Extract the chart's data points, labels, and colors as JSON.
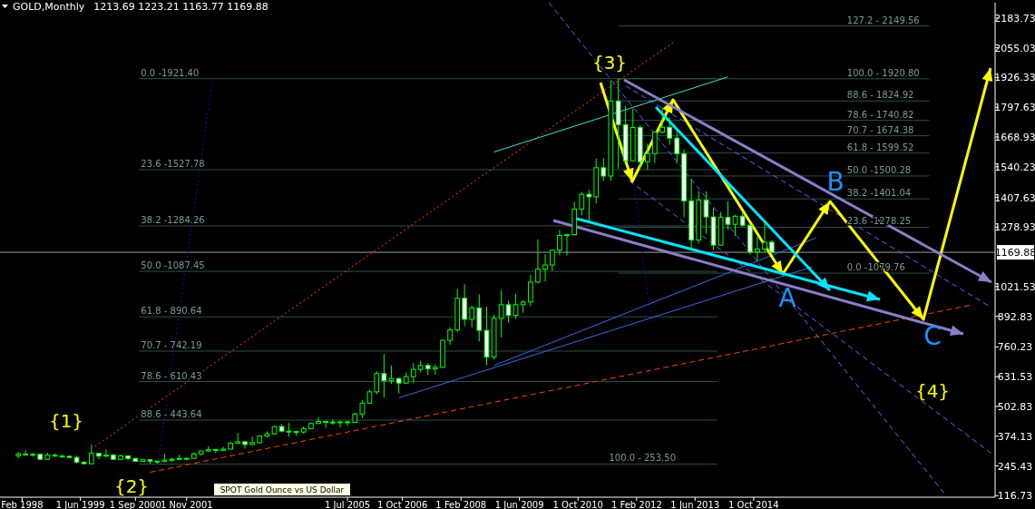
{
  "chart_data": {
    "type": "candlestick",
    "title": "GOLD,Monthly",
    "subtitle": "1213.69 1223.21 1163.77 1169.88",
    "annotations": [
      "{1}",
      "{2}",
      "{3}",
      "{4}",
      "A",
      "B",
      "C",
      "SPOT Gold Ounce vs US Dollar",
      {
        "text": "0.0 -1921.40",
        "x": "2000-10",
        "y": 1921.4
      },
      {
        "text": "23.6 -1527.78",
        "x": "2000-10",
        "y": 1527.78
      },
      {
        "text": "38.2 -1284.26",
        "x": "2000-10",
        "y": 1284.26
      },
      {
        "text": "50.0 -1087.45",
        "x": "2000-10",
        "y": 1087.45
      },
      {
        "text": "61.8 - 890.64",
        "x": "2000-10",
        "y": 890.64
      },
      {
        "text": "70.7 - 742.19",
        "x": "2000-10",
        "y": 742.19
      },
      {
        "text": "78.6 - 610.43",
        "x": "2000-10",
        "y": 610.43
      },
      {
        "text": "88.6 - 443.64",
        "x": "2000-10",
        "y": 443.64
      },
      {
        "text": "100.0 - 253.50",
        "x": "2011-06",
        "y": 253.5
      },
      {
        "text": "127.2 - 2149.56",
        "x": "2016-11",
        "y": 2149.56
      },
      {
        "text": "100.0 - 1920.80",
        "x": "2016-11",
        "y": 1920.8
      },
      {
        "text": "88.6 - 1824.92",
        "x": "2016-11",
        "y": 1824.92
      },
      {
        "text": "78.6 - 1740.82",
        "x": "2016-11",
        "y": 1740.82
      },
      {
        "text": "70.7 - 1674.38",
        "x": "2016-11",
        "y": 1674.38
      },
      {
        "text": "61.8 - 1599.52",
        "x": "2016-11",
        "y": 1599.52
      },
      {
        "text": "50.0 -1500.28",
        "x": "2016-11",
        "y": 1500.28
      },
      {
        "text": "38.2 -1401.04",
        "x": "2016-11",
        "y": 1401.04
      },
      {
        "text": "23.6 -1278.25",
        "x": "2016-11",
        "y": 1278.25
      },
      {
        "text": "0.0 -1079.76",
        "x": "2016-11",
        "y": 1079.76
      }
    ],
    "xlim": [
      "1997-08",
      "2020-04"
    ],
    "xticks": [
      {
        "value": "1998-02",
        "label": "Feb 1998"
      },
      {
        "value": "1999-06",
        "label": "1 Jun 1999"
      },
      {
        "value": "2000-09",
        "label": "1 Sep 2000"
      },
      {
        "value": "2001-11",
        "label": "1 Nov 2001"
      },
      {
        "value": "2005-07",
        "label": "1 Jul 2005"
      },
      {
        "value": "2006-10",
        "label": "1 Oct 2006"
      },
      {
        "value": "2008-02",
        "label": "1 Feb 2008"
      },
      {
        "value": "2009-06",
        "label": "1 Jun 2009"
      },
      {
        "value": "2010-10",
        "label": "1 Oct 2010"
      },
      {
        "value": "2012-02",
        "label": "1 Feb 2012"
      },
      {
        "value": "2013-06",
        "label": "1 Jun 2013"
      },
      {
        "value": "2014-10",
        "label": "1 Oct 2014"
      }
    ],
    "ylim": [
      110,
      2250
    ],
    "yticks": [
      116.73,
      245.43,
      374.13,
      502.83,
      631.53,
      760.23,
      892.83,
      1021.53,
      1278.93,
      1407.63,
      1540.23,
      1668.93,
      1797.63,
      1926.33,
      2055.03,
      2183.73
    ],
    "ref_lines": [
      {
        "axis": "y",
        "value": 1169.88,
        "label": "1169.88",
        "color": "#a0a0a0"
      }
    ],
    "series": [
      {
        "type": "candlestick",
        "color": "#00ff00",
        "x": [
          "1998-01",
          "1998-03",
          "1998-05",
          "1998-07",
          "1998-09",
          "1998-11",
          "1999-01",
          "1999-03",
          "1999-05",
          "1999-07",
          "1999-09",
          "1999-11",
          "2000-01",
          "2000-03",
          "2000-05",
          "2000-07",
          "2000-09",
          "2000-11",
          "2001-01",
          "2001-03",
          "2001-05",
          "2001-07",
          "2001-09",
          "2001-11",
          "2002-01",
          "2002-03",
          "2002-05",
          "2002-07",
          "2002-09",
          "2002-11",
          "2003-01",
          "2003-03",
          "2003-05",
          "2003-07",
          "2003-09",
          "2003-11",
          "2004-01",
          "2004-03",
          "2004-05",
          "2004-07",
          "2004-09",
          "2004-11",
          "2005-01",
          "2005-03",
          "2005-05",
          "2005-07",
          "2005-09",
          "2005-11",
          "2006-01",
          "2006-03",
          "2006-05",
          "2006-07",
          "2006-09",
          "2006-11",
          "2007-01",
          "2007-03",
          "2007-05",
          "2007-07",
          "2007-09",
          "2007-11",
          "2008-01",
          "2008-03",
          "2008-05",
          "2008-07",
          "2008-09",
          "2008-11",
          "2009-01",
          "2009-03",
          "2009-05",
          "2009-07",
          "2009-09",
          "2009-11",
          "2010-01",
          "2010-03",
          "2010-05",
          "2010-07",
          "2010-09",
          "2010-11",
          "2011-01",
          "2011-03",
          "2011-05",
          "2011-07",
          "2011-09",
          "2011-11",
          "2012-01",
          "2012-03",
          "2012-05",
          "2012-07",
          "2012-09",
          "2012-11",
          "2013-01",
          "2013-03",
          "2013-05",
          "2013-07",
          "2013-09",
          "2013-11",
          "2014-01",
          "2014-03",
          "2014-05",
          "2014-07",
          "2014-09",
          "2014-11",
          "2015-01",
          "2015-03"
        ],
        "ohlc": [
          [
            289,
            305,
            279,
            297
          ],
          [
            297,
            314,
            292,
            296
          ],
          [
            296,
            302,
            285,
            296
          ],
          [
            296,
            297,
            272,
            274
          ],
          [
            274,
            302,
            271,
            292
          ],
          [
            292,
            300,
            285,
            288
          ],
          [
            288,
            294,
            280,
            287
          ],
          [
            287,
            290,
            278,
            282
          ],
          [
            282,
            290,
            256,
            262
          ],
          [
            262,
            265,
            252,
            255
          ],
          [
            255,
            338,
            253,
            300
          ],
          [
            300,
            302,
            274,
            288
          ],
          [
            288,
            316,
            281,
            292
          ],
          [
            292,
            299,
            270,
            274
          ],
          [
            274,
            294,
            270,
            289
          ],
          [
            289,
            290,
            270,
            278
          ],
          [
            278,
            280,
            263,
            265
          ],
          [
            265,
            275,
            262,
            272
          ],
          [
            272,
            275,
            255,
            266
          ],
          [
            266,
            268,
            255,
            264
          ],
          [
            264,
            298,
            262,
            270
          ],
          [
            270,
            280,
            264,
            274
          ],
          [
            274,
            294,
            270,
            278
          ],
          [
            278,
            282,
            270,
            278
          ],
          [
            278,
            306,
            277,
            297
          ],
          [
            297,
            312,
            290,
            310
          ],
          [
            310,
            329,
            305,
            316
          ],
          [
            316,
            318,
            300,
            313
          ],
          [
            313,
            328,
            310,
            318
          ],
          [
            318,
            350,
            316,
            343
          ],
          [
            343,
            388,
            342,
            350
          ],
          [
            350,
            352,
            320,
            338
          ],
          [
            338,
            372,
            336,
            346
          ],
          [
            346,
            378,
            342,
            375
          ],
          [
            375,
            395,
            368,
            384
          ],
          [
            384,
            418,
            380,
            416
          ],
          [
            416,
            427,
            390,
            396
          ],
          [
            396,
            431,
            371,
            394
          ],
          [
            394,
            398,
            375,
            392
          ],
          [
            392,
            416,
            385,
            407
          ],
          [
            407,
            434,
            403,
            429
          ],
          [
            429,
            456,
            428,
            438
          ],
          [
            438,
            441,
            411,
            434
          ],
          [
            434,
            446,
            424,
            435
          ],
          [
            435,
            442,
            413,
            436
          ],
          [
            436,
            441,
            418,
            434
          ],
          [
            434,
            476,
            431,
            470
          ],
          [
            470,
            530,
            453,
            517
          ],
          [
            517,
            575,
            515,
            566
          ],
          [
            566,
            655,
            555,
            645
          ],
          [
            645,
            730,
            542,
            614
          ],
          [
            614,
            680,
            600,
            624
          ],
          [
            624,
            626,
            560,
            604
          ],
          [
            604,
            650,
            600,
            632
          ],
          [
            632,
            690,
            603,
            663
          ],
          [
            663,
            700,
            650,
            680
          ],
          [
            680,
            691,
            640,
            666
          ],
          [
            666,
            686,
            640,
            672
          ],
          [
            672,
            790,
            670,
            789
          ],
          [
            789,
            845,
            770,
            834
          ],
          [
            834,
            1012,
            825,
            971
          ],
          [
            971,
            1032,
            850,
            880
          ],
          [
            880,
            940,
            845,
            929
          ],
          [
            929,
            988,
            785,
            832
          ],
          [
            832,
            935,
            681,
            717
          ],
          [
            717,
            900,
            705,
            884
          ],
          [
            884,
            1007,
            802,
            943
          ],
          [
            943,
            960,
            865,
            897
          ],
          [
            897,
            990,
            883,
            943
          ],
          [
            943,
            963,
            908,
            955
          ],
          [
            955,
            1072,
            937,
            1041
          ],
          [
            1041,
            1226,
            1035,
            1097
          ],
          [
            1097,
            1162,
            1044,
            1115
          ],
          [
            1115,
            1180,
            1088,
            1179
          ],
          [
            1179,
            1266,
            1157,
            1243
          ],
          [
            1243,
            1250,
            1157,
            1246
          ],
          [
            1246,
            1388,
            1243,
            1357
          ],
          [
            1357,
            1431,
            1330,
            1421
          ],
          [
            1421,
            1440,
            1308,
            1410
          ],
          [
            1410,
            1576,
            1382,
            1536
          ],
          [
            1536,
            1577,
            1478,
            1500
          ],
          [
            1500,
            1913,
            1480,
            1825
          ],
          [
            1825,
            1921,
            1532,
            1722
          ],
          [
            1722,
            1803,
            1562,
            1566
          ],
          [
            1566,
            1791,
            1563,
            1710
          ],
          [
            1710,
            1720,
            1527,
            1562
          ],
          [
            1562,
            1640,
            1527,
            1597
          ],
          [
            1597,
            1695,
            1557,
            1690
          ],
          [
            1690,
            1796,
            1683,
            1711
          ],
          [
            1711,
            1754,
            1635,
            1664
          ],
          [
            1664,
            1696,
            1554,
            1596
          ],
          [
            1596,
            1616,
            1321,
            1392
          ],
          [
            1392,
            1488,
            1180,
            1223
          ],
          [
            1223,
            1434,
            1207,
            1395
          ],
          [
            1395,
            1433,
            1251,
            1323
          ],
          [
            1323,
            1361,
            1180,
            1201
          ],
          [
            1201,
            1345,
            1200,
            1321
          ],
          [
            1321,
            1392,
            1268,
            1291
          ],
          [
            1291,
            1332,
            1240,
            1326
          ],
          [
            1326,
            1345,
            1280,
            1287
          ],
          [
            1287,
            1292,
            1161,
            1171
          ],
          [
            1171,
            1238,
            1131,
            1184
          ],
          [
            1184,
            1307,
            1167,
            1213
          ],
          [
            1213.69,
            1223.21,
            1163.77,
            1169.88
          ]
        ]
      },
      {
        "type": "line",
        "color": "#2f4f4f",
        "x": [
          "2000-10",
          "2013-12"
        ],
        "values": [
          1921.4,
          1921.4
        ]
      },
      {
        "type": "line",
        "color": "#2f4f4f",
        "x": [
          "2000-10",
          "2014-03"
        ],
        "values": [
          1527.78,
          1527.78
        ]
      },
      {
        "type": "line",
        "color": "#2f4f4f",
        "x": [
          "2000-10",
          "2013-12"
        ],
        "values": [
          1284.26,
          1284.26
        ]
      },
      {
        "type": "line",
        "color": "#2f4f4f",
        "x": [
          "2000-10",
          "2013-12"
        ],
        "values": [
          1087.45,
          1087.45
        ]
      },
      {
        "type": "line",
        "color": "#2f4f4f",
        "x": [
          "2000-10",
          "2013-12"
        ],
        "values": [
          890.64,
          890.64
        ]
      },
      {
        "type": "line",
        "color": "#2f4f4f",
        "x": [
          "2000-10",
          "2013-12"
        ],
        "values": [
          742.19,
          742.19
        ]
      },
      {
        "type": "line",
        "color": "#2f4f4f",
        "x": [
          "2000-10",
          "2013-12"
        ],
        "values": [
          610.43,
          610.43
        ]
      },
      {
        "type": "line",
        "color": "#2f4f4f",
        "x": [
          "2000-10",
          "2013-12"
        ],
        "values": [
          443.64,
          443.64
        ]
      },
      {
        "type": "line",
        "color": "#2f4f4f",
        "x": [
          "2000-10",
          "2013-12"
        ],
        "values": [
          253.5,
          253.5
        ]
      },
      {
        "type": "line",
        "color": "#2f4f4f",
        "x": [
          "2011-09",
          "2018-10"
        ],
        "values": [
          2149.56,
          2149.56
        ]
      },
      {
        "type": "line",
        "color": "#2f4f4f",
        "x": [
          "2011-09",
          "2018-10"
        ],
        "values": [
          1920.8,
          1920.8
        ]
      },
      {
        "type": "line",
        "color": "#2f4f4f",
        "x": [
          "2011-09",
          "2018-10"
        ],
        "values": [
          1824.92,
          1824.92
        ]
      },
      {
        "type": "line",
        "color": "#2f4f4f",
        "x": [
          "2011-09",
          "2018-10"
        ],
        "values": [
          1740.82,
          1740.82
        ]
      },
      {
        "type": "line",
        "color": "#2f4f4f",
        "x": [
          "2011-09",
          "2018-10"
        ],
        "values": [
          1674.38,
          1674.38
        ]
      },
      {
        "type": "line",
        "color": "#2f4f4f",
        "x": [
          "2011-09",
          "2018-10"
        ],
        "values": [
          1599.52,
          1599.52
        ]
      },
      {
        "type": "line",
        "color": "#2f4f4f",
        "x": [
          "2011-09",
          "2018-10"
        ],
        "values": [
          1500.28,
          1500.28
        ]
      },
      {
        "type": "line",
        "color": "#2f4f4f",
        "x": [
          "2011-09",
          "2018-10"
        ],
        "values": [
          1401.04,
          1401.04
        ]
      },
      {
        "type": "line",
        "color": "#2f4f4f",
        "x": [
          "2011-09",
          "2018-10"
        ],
        "values": [
          1278.25,
          1278.25
        ]
      },
      {
        "type": "line",
        "color": "#2f4f4f",
        "x": [
          "2011-09",
          "2018-10"
        ],
        "values": [
          1079.76,
          1079.76
        ]
      },
      {
        "type": "line",
        "color": "#ff4500",
        "line_style": "dotted",
        "x": [
          "1999-10",
          "2012-12"
        ],
        "values": [
          330,
          2078
        ]
      },
      {
        "type": "line",
        "color": "#ff4500",
        "line_style": "dashed",
        "x": [
          "2001-01",
          "2019-09"
        ],
        "values": [
          218,
          940
        ]
      },
      {
        "type": "line",
        "color": "#1010b0",
        "line_style": "dotted",
        "x": [
          "2001-03",
          "2002-06"
        ],
        "values": [
          235,
          1910
        ]
      },
      {
        "type": "line",
        "color": "#1010b0",
        "line_style": "dotted",
        "x": [
          "2011-10",
          "2012-06"
        ],
        "values": [
          1880,
          870
        ]
      },
      {
        "type": "line",
        "color": "#4169e1",
        "line_style": "solid",
        "x": [
          "2006-09",
          "2016-02"
        ],
        "values": [
          540,
          1107
        ]
      },
      {
        "type": "line",
        "color": "#4169e1",
        "line_style": "solid",
        "x": [
          "2008-11",
          "2016-03"
        ],
        "values": [
          680,
          1232
        ]
      },
      {
        "type": "line",
        "color": "#6464ff",
        "line_style": "dashed",
        "x": [
          "2010-02",
          "2019-02"
        ],
        "values": [
          2250,
          128
        ]
      },
      {
        "type": "line",
        "color": "#6464ff",
        "line_style": "dashed",
        "x": [
          "2011-11",
          "2020-02"
        ],
        "values": [
          1890,
          940
        ]
      },
      {
        "type": "line",
        "color": "#6464ff",
        "line_style": "dashed",
        "x": [
          "2011-12",
          "2020-03"
        ],
        "values": [
          1480,
          300
        ]
      },
      {
        "type": "line",
        "color": "#40e0d0",
        "line_style": "solid",
        "x": [
          "2008-11",
          "2014-03"
        ],
        "values": [
          1604,
          1929
        ]
      }
    ]
  }
}
